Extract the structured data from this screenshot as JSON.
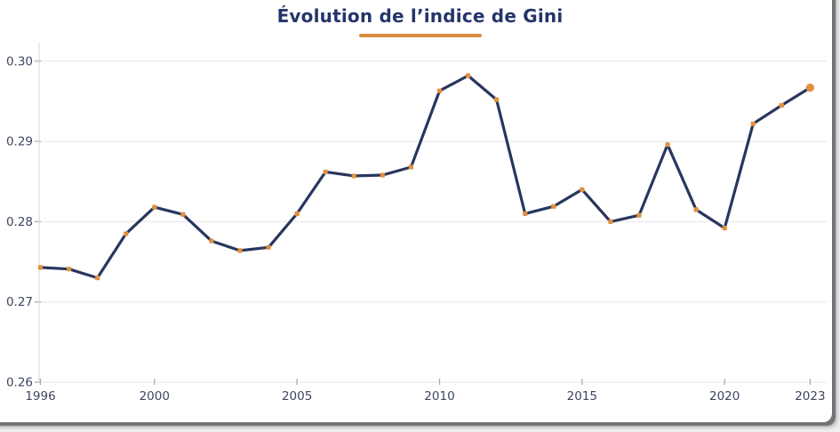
{
  "page": {
    "title": "Évolution de l’indice de Gini"
  },
  "colors": {
    "title": "#25356b",
    "accent_underline": "#d98c3e",
    "line": "#28365f",
    "marker": "#e0913f",
    "grid": "#e4e5e9",
    "axis_line": "#d9dbe0",
    "tick": "#a8adb8",
    "tick_label": "#3d4660",
    "card_bg": "#ffffff",
    "page_bg": "#eef0f2"
  },
  "chart_data": {
    "type": "line",
    "title": "Évolution de l’indice de Gini",
    "xlabel": "",
    "ylabel": "",
    "x": [
      1996,
      1997,
      1998,
      1999,
      2000,
      2001,
      2002,
      2003,
      2004,
      2005,
      2006,
      2007,
      2008,
      2009,
      2010,
      2011,
      2012,
      2013,
      2014,
      2015,
      2016,
      2017,
      2018,
      2019,
      2020,
      2021,
      2022,
      2023
    ],
    "values": [
      0.2743,
      0.2741,
      0.273,
      0.2785,
      0.2818,
      0.2809,
      0.2776,
      0.2764,
      0.2768,
      0.281,
      0.2862,
      0.2857,
      0.2858,
      0.2868,
      0.2963,
      0.2982,
      0.2952,
      0.281,
      0.2819,
      0.284,
      0.28,
      0.2808,
      0.2896,
      0.2815,
      0.2792,
      0.2922,
      0.2945,
      0.2967
    ],
    "xticks": [
      1996,
      2000,
      2005,
      2010,
      2015,
      2020,
      2023
    ],
    "yticks": [
      0.26,
      0.27,
      0.28,
      0.29,
      0.3
    ],
    "ylim": [
      0.26,
      0.302
    ],
    "xlim": [
      1996,
      2023
    ],
    "grid": "horizontal",
    "legend": "none",
    "last_point_emphasized": true
  }
}
